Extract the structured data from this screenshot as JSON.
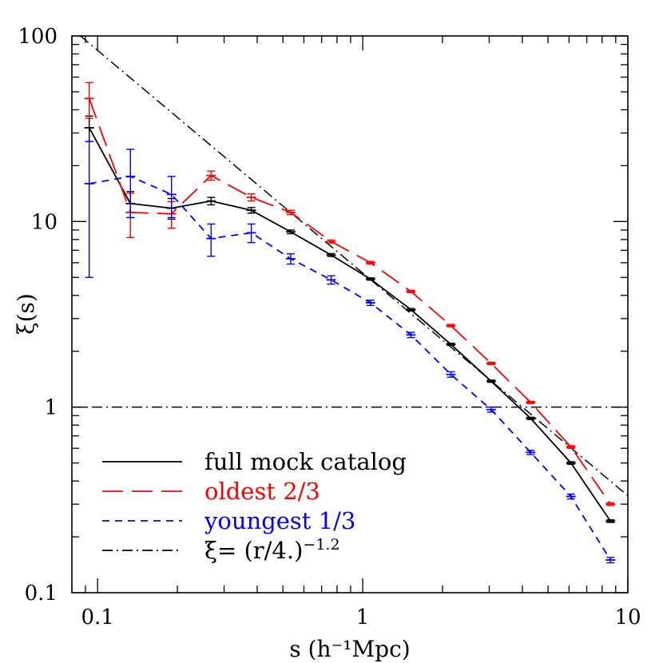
{
  "chart_data": {
    "type": "line",
    "title": "",
    "xlabel": "s (h⁻¹Mpc)",
    "ylabel": "ξ(s)",
    "xscale": "log",
    "yscale": "log",
    "xlim": [
      0.08,
      10
    ],
    "ylim": [
      0.1,
      100
    ],
    "x_tick_labels": [
      "0.1",
      "1",
      "10"
    ],
    "y_tick_labels": [
      "0.1",
      "1",
      "10",
      "100"
    ],
    "grid": false,
    "legend_position": "bottom-left",
    "x": [
      0.093,
      0.133,
      0.19,
      0.268,
      0.38,
      0.535,
      0.76,
      1.07,
      1.52,
      2.15,
      3.05,
      4.3,
      6.1,
      8.6
    ],
    "series": [
      {
        "name": "full mock catalog",
        "color": "#000000",
        "style": "solid",
        "values": [
          32.0,
          12.5,
          11.8,
          12.9,
          11.5,
          8.8,
          6.6,
          4.9,
          3.35,
          2.18,
          1.38,
          0.87,
          0.5,
          0.243
        ],
        "err": [
          5.0,
          2.0,
          1.5,
          0.6,
          0.4,
          0.2,
          0.12,
          0.07,
          0.05,
          0.03,
          0.02,
          0.012,
          0.008,
          0.004
        ]
      },
      {
        "name": "oldest 2/3",
        "color": "#ff0000",
        "style": "long-dash",
        "values": [
          46.0,
          11.2,
          11.0,
          17.7,
          13.5,
          11.2,
          7.8,
          6.0,
          4.2,
          2.75,
          1.72,
          1.06,
          0.61,
          0.3
        ],
        "err": [
          10.0,
          3.0,
          1.8,
          1.0,
          0.6,
          0.3,
          0.15,
          0.1,
          0.06,
          0.04,
          0.025,
          0.015,
          0.01,
          0.005
        ]
      },
      {
        "name": "youngest 1/3",
        "color": "#0000ff",
        "style": "short-dash",
        "values": [
          16.0,
          17.5,
          14.0,
          8.1,
          8.7,
          6.3,
          4.85,
          3.65,
          2.45,
          1.5,
          0.97,
          0.57,
          0.33,
          0.15
        ],
        "err": [
          11.0,
          7.0,
          3.5,
          1.6,
          1.0,
          0.4,
          0.25,
          0.12,
          0.08,
          0.05,
          0.03,
          0.015,
          0.01,
          0.005
        ]
      }
    ],
    "reference_lines": [
      {
        "name": "ξ= (r/4.)⁻¹·²",
        "type": "power-law",
        "r0": 4.0,
        "gamma": 1.2,
        "color": "#000000",
        "style": "dash-dot"
      },
      {
        "type": "horizontal",
        "y": 1.0,
        "color": "#000000",
        "style": "dash-dot"
      }
    ]
  },
  "legend": [
    {
      "label": "full mock catalog",
      "color": "#000000",
      "style": "solid"
    },
    {
      "label": "oldest 2/3",
      "color": "#ff0000",
      "style": "long-dash"
    },
    {
      "label": "youngest 1/3",
      "color": "#0000ff",
      "style": "short-dash"
    },
    {
      "label_prefix": "ξ= (r/4.)",
      "label_sup": "−1.2",
      "color": "#000000",
      "style": "dash-dot"
    }
  ]
}
